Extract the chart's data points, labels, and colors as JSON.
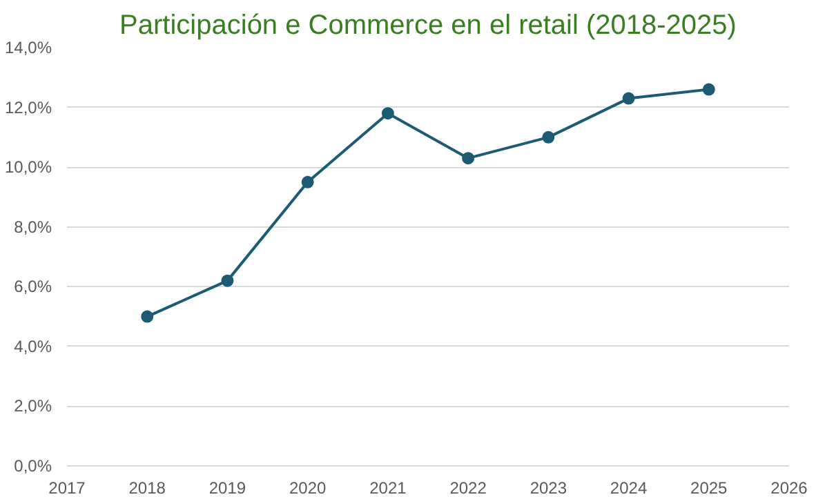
{
  "chart_data": {
    "type": "line",
    "title": "Participación e Commerce en el retail (2018-2025)",
    "x": [
      2018,
      2019,
      2020,
      2021,
      2022,
      2023,
      2024,
      2025
    ],
    "series": [
      {
        "color": "#1d5b74",
        "values": [
          5.0,
          6.2,
          9.5,
          11.8,
          10.3,
          11.0,
          12.3,
          12.6
        ]
      }
    ],
    "xlim": [
      2017,
      2026
    ],
    "xticks": [
      2017,
      2018,
      2019,
      2020,
      2021,
      2022,
      2023,
      2024,
      2025,
      2026
    ],
    "ylim": [
      0,
      14
    ],
    "yticks": [
      {
        "value": 0,
        "label": "0,0%"
      },
      {
        "value": 2,
        "label": "2,0%"
      },
      {
        "value": 4,
        "label": "4,0%"
      },
      {
        "value": 6,
        "label": "6,0%"
      },
      {
        "value": 8,
        "label": "8,0%"
      },
      {
        "value": 10,
        "label": "10,0%"
      },
      {
        "value": 12,
        "label": "12,0%"
      },
      {
        "value": 14,
        "label": "14,0%"
      }
    ],
    "grid": "y",
    "marker": "circle",
    "line_style": "solid"
  }
}
